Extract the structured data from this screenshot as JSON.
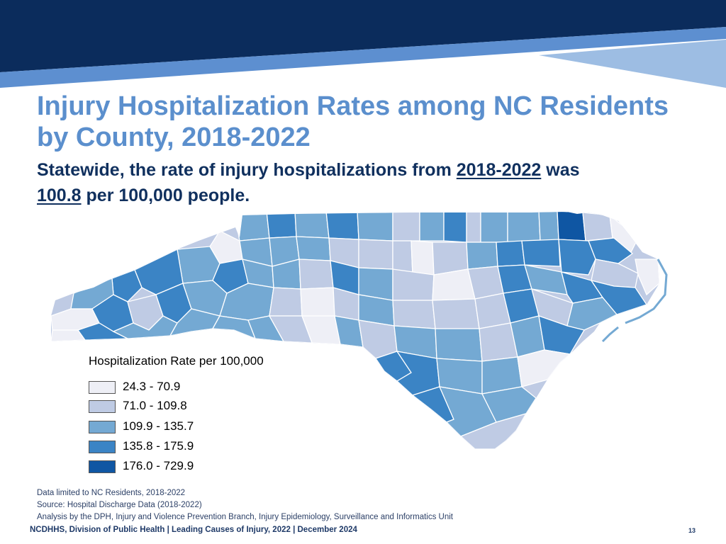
{
  "colors": {
    "banner_dark": "#0b2c5c",
    "banner_mid": "#5d8fd0",
    "banner_light": "#9dbde3",
    "title": "#5b8fcd",
    "subtitle": "#10305e",
    "county_border": "#ffffff"
  },
  "slide": {
    "title_line1": "Injury Hospitalization Rates among NC Residents",
    "title_line2": "by County, 2018-2022",
    "subtitle_pre": "Statewide, the rate of injury hospitalizations from",
    "subtitle_years": "2018-2022",
    "subtitle_mid": "was",
    "subtitle_rate": "100.8",
    "subtitle_post": "per 100,000 people."
  },
  "map": {
    "legend": {
      "title": "Hospitalization Rate per 100,000",
      "classes": [
        {
          "label": "24.3 - 70.9",
          "color": "#eeeff6"
        },
        {
          "label": "71.0 - 109.8",
          "color": "#bfcbe4"
        },
        {
          "label": "109.9 - 135.7",
          "color": "#74a9d3"
        },
        {
          "label": "135.8 - 175.9",
          "color": "#3b84c5"
        },
        {
          "label": "176.0 - 729.9",
          "color": "#0f56a3"
        }
      ]
    }
  },
  "notes": {
    "line1": "Data limited to NC Residents, 2018-2022",
    "line2": "Source: Hospital Discharge Data (2018-2022)",
    "line3": "Analysis by the DPH, Injury and Violence Prevention Branch, Injury Epidemiology, Surveillance and Informatics Unit"
  },
  "footer": {
    "text": "NCDHHS, Division of Public Health | Leading Causes of Injury, 2022 | December 2024",
    "page_number": "13"
  }
}
